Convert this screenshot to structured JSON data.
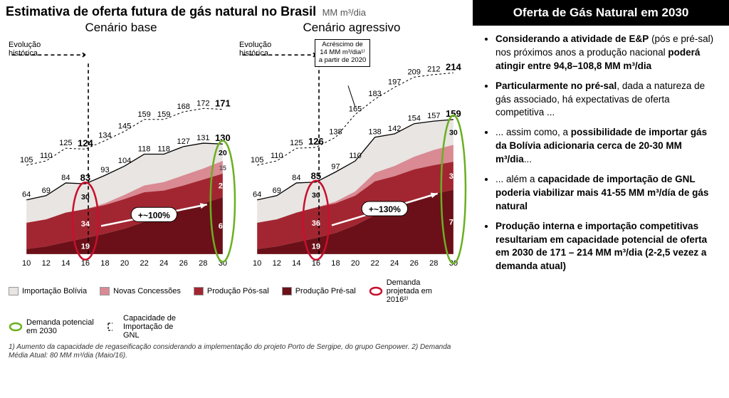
{
  "title": "Estimativa de oferta futura de gás natural no Brasil",
  "unit": "MM m³/dia",
  "subtitleLeft": "Cenário base",
  "subtitleRight": "Cenário agressivo",
  "evolLabel": "Evolução\nhistórica",
  "callout": "Acréscimo de 14 MM m³/dia¹⁾ a partir de 2020",
  "panel": {
    "header": "Oferta de Gás Natural em 2030",
    "bullets": [
      "<b>Considerando a atividade de E&amp;P</b> (pós e pré-sal) nos próximos anos a produção nacional <b>poderá atingir entre 94,8–108,8 MM m³/dia</b>",
      "<b>Particularmente no pré-sal</b>, dada a natureza de gás associado, há expectativas de oferta competitiva ...",
      "... assim como, a <b>possibilidade de importar gás da Bolívia adicionaria cerca de 20-30 MM m³/dia</b>...",
      "... além a <b>capacidade de importação de GNL poderia viabilizar mais 41-55 MM m³/día de gás natural</b>",
      "<b>Produção interna e importação competitivas resultariam em capacidade potencial de oferta em 2030 de 171 – 214 MM m³/dia (2-2,5 vezez a demanda atual)</b>"
    ]
  },
  "legend": [
    {
      "label": "Importação Bolívia",
      "swatch": "#e8e5e2",
      "type": "box"
    },
    {
      "label": "Novas Concessões",
      "swatch": "#d98a93",
      "type": "box"
    },
    {
      "label": "Produção Pós-sal",
      "swatch": "#a22631",
      "type": "box"
    },
    {
      "label": "Produção Pré-sal",
      "swatch": "#6b1018",
      "type": "box"
    },
    {
      "label": "Demanda projetada em 2016²⁾",
      "type": "ellipse",
      "color": "#c8102e"
    },
    {
      "label": "Demanda potencial em 2030",
      "type": "ellipse",
      "color": "#6ab023"
    },
    {
      "label": "Capacidade de Importação de GNL",
      "type": "bracket"
    }
  ],
  "footnote": "1) Aumento da capacidade de regaseificação considerando a implementação do projeto Porto de Sergipe, do grupo Genpower.  2) Demanda Média Atual: 80 MM m³/dia (Maio/16).",
  "axis": {
    "years": [
      "10",
      "12",
      "14",
      "16",
      "18",
      "20",
      "22",
      "24",
      "26",
      "28",
      "30"
    ],
    "xStart": 28,
    "xEnd": 302,
    "yBase": 300,
    "yTop": 40,
    "yMax": 220
  },
  "colors": {
    "bolivia": "#e8e5e2",
    "concess": "#d98a93",
    "possal": "#a22631",
    "presal": "#6b1018"
  },
  "base": {
    "total": [
      64,
      69,
      84,
      83,
      93,
      104,
      118,
      118,
      127,
      131,
      130
    ],
    "totalEnd": 130,
    "capLine": [
      105,
      110,
      125,
      124,
      134,
      145,
      159,
      159,
      168,
      172,
      171
    ],
    "capEnd": 171,
    "capBold": [
      3,
      10
    ],
    "breakdown2016": [
      {
        "v": 19,
        "c": "presal"
      },
      {
        "v": 34,
        "c": "possal"
      },
      {
        "v": 30,
        "c": "bolivia"
      }
    ],
    "breakdown2030": [
      {
        "v": 67,
        "c": "presal"
      },
      {
        "v": 28,
        "c": "possal"
      },
      {
        "v": 15,
        "c": "concess"
      },
      {
        "v": 20,
        "c": "bolivia"
      }
    ],
    "pctLabel": "+~100%",
    "series": {
      "presal": [
        6,
        9,
        14,
        19,
        24,
        30,
        38,
        45,
        52,
        60,
        67
      ],
      "possal": [
        31,
        32,
        35,
        34,
        34,
        35,
        35,
        30,
        29,
        28,
        28
      ],
      "concess": [
        0,
        0,
        0,
        0,
        2,
        5,
        8,
        10,
        12,
        13,
        15
      ],
      "bolivia": [
        27,
        28,
        35,
        30,
        33,
        34,
        37,
        33,
        34,
        30,
        20
      ]
    }
  },
  "agg": {
    "total": [
      64,
      69,
      84,
      85,
      97,
      110,
      138,
      142,
      154,
      157,
      159
    ],
    "totalEnd": 159,
    "capLine": [
      105,
      110,
      125,
      126,
      138,
      165,
      183,
      197,
      209,
      212,
      214
    ],
    "capEnd": 214,
    "capBold": [
      3,
      10
    ],
    "breakdown2016": [
      {
        "v": 19,
        "c": "presal"
      },
      {
        "v": 36,
        "c": "possal"
      },
      {
        "v": 30,
        "c": "bolivia"
      }
    ],
    "breakdown2030": [
      {
        "v": 76,
        "c": "presal"
      },
      {
        "v": 33,
        "c": "possal"
      },
      {
        "v": 20,
        "c": "concess",
        "labelHidden": true
      },
      {
        "v": 30,
        "c": "bolivia"
      }
    ],
    "endLabels": [
      {
        "v": 76
      },
      {
        "v": 33
      },
      {
        "v": 20
      },
      {
        "v": 30
      }
    ],
    "pctLabel": "+~130%",
    "series": {
      "presal": [
        6,
        9,
        14,
        19,
        25,
        34,
        46,
        55,
        64,
        71,
        76
      ],
      "possal": [
        31,
        32,
        35,
        36,
        35,
        35,
        40,
        37,
        36,
        34,
        33
      ],
      "concess": [
        0,
        0,
        0,
        0,
        2,
        5,
        10,
        12,
        15,
        18,
        20
      ],
      "bolivia": [
        27,
        28,
        35,
        30,
        35,
        36,
        42,
        38,
        39,
        34,
        30
      ]
    }
  }
}
